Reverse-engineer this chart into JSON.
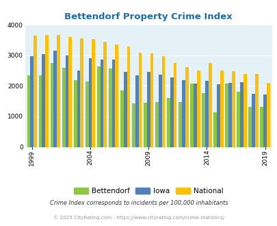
{
  "title": "Bettendorf Property Crime Index",
  "title_color": "#1a6faf",
  "years": [
    1999,
    2000,
    2001,
    2002,
    2003,
    2004,
    2005,
    2006,
    2007,
    2008,
    2009,
    2010,
    2011,
    2012,
    2013,
    2014,
    2015,
    2016,
    2017,
    2018,
    2019
  ],
  "bettendorf": [
    2350,
    2350,
    2760,
    2600,
    2180,
    2150,
    2630,
    2570,
    1850,
    1430,
    1440,
    1480,
    1610,
    1480,
    2080,
    1760,
    1130,
    2080,
    1800,
    1310,
    1310
  ],
  "iowa": [
    2970,
    3040,
    3160,
    3000,
    2510,
    2900,
    2870,
    2860,
    2450,
    2340,
    2450,
    2370,
    2280,
    2190,
    2070,
    2170,
    2060,
    2100,
    2130,
    1730,
    1720
  ],
  "national": [
    3640,
    3680,
    3680,
    3610,
    3550,
    3530,
    3450,
    3360,
    3290,
    3080,
    3060,
    2970,
    2760,
    2620,
    2510,
    2750,
    2510,
    2470,
    2400,
    2390,
    2100
  ],
  "color_bettendorf": "#8dc63f",
  "color_iowa": "#4f81bd",
  "color_national": "#ffc000",
  "bg_color": "#e4f1f7",
  "footnote1": "Crime Index corresponds to incidents per 100,000 inhabitants",
  "footnote2": "© 2025 CityRating.com - https://www.cityrating.com/crime-statistics/",
  "footnote1_color": "#333333",
  "footnote2_color": "#999999",
  "xtick_years": [
    1999,
    2004,
    2009,
    2014,
    2019
  ]
}
